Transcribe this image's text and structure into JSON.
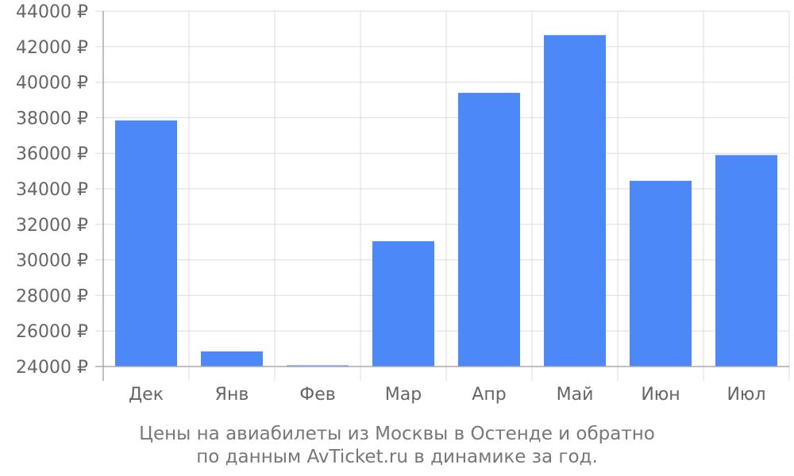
{
  "chart_data": {
    "type": "bar",
    "categories": [
      "Дек",
      "Янв",
      "Фев",
      "Мар",
      "Апр",
      "Май",
      "Июн",
      "Июл"
    ],
    "values": [
      37850,
      24850,
      24030,
      31050,
      39400,
      42650,
      34450,
      35900
    ],
    "ylim": [
      24000,
      44000
    ],
    "yticks": [
      24000,
      26000,
      28000,
      30000,
      32000,
      34000,
      36000,
      38000,
      40000,
      42000,
      44000
    ],
    "y_tick_labels": [
      "24000 ₽",
      "26000 ₽",
      "28000 ₽",
      "30000 ₽",
      "32000 ₽",
      "34000 ₽",
      "36000 ₽",
      "38000 ₽",
      "40000 ₽",
      "42000 ₽",
      "44000 ₽"
    ],
    "grid": true,
    "legend": false,
    "bar_color": "#4d88f9",
    "grid_color": "#dddddd",
    "axis_color": "#aaaaaa",
    "label_color": "#666666"
  },
  "caption": {
    "line1": "Цены на авиабилеты из Москвы в Остенде и обратно",
    "line2": "по данным AvTicket.ru в динамике за год."
  }
}
